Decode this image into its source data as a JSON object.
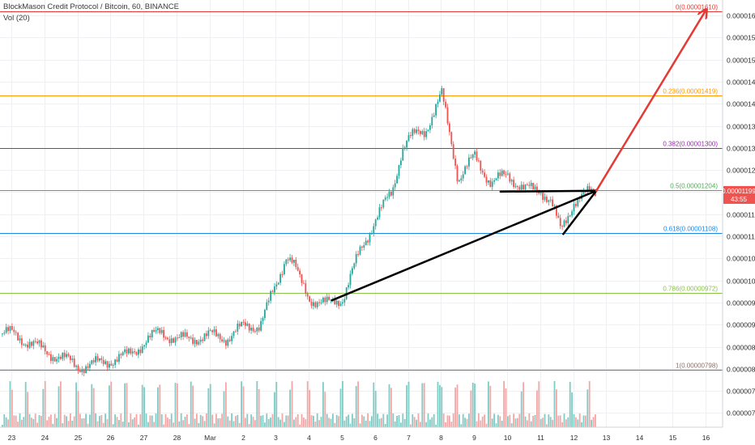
{
  "header": {
    "title": "BlockMason Credit Protocol / Bitcoin, 60, BINANCE",
    "volume_label": "Vol (20)"
  },
  "price_badge": {
    "price": "0.00001199",
    "countdown": "43:55",
    "color": "#ef5350"
  },
  "colors": {
    "up": "#26a69a",
    "down": "#ef5350",
    "vol_up": "#80cbc4",
    "vol_down": "#f3a6a6",
    "grid": "#eef0f3",
    "axis": "#555555"
  },
  "chart_data": {
    "type": "candlestick",
    "title": "BlockMason Credit Protocol / Bitcoin, 60, BINANCE",
    "x_ticks": [
      "23",
      "24",
      "25",
      "26",
      "27",
      "28",
      "Mar",
      "2",
      "3",
      "4",
      "5",
      "6",
      "7",
      "8",
      "9",
      "10",
      "11",
      "12",
      "13",
      "14",
      "15",
      "16"
    ],
    "y_ticks": [
      "0.00001600",
      "0.00001550",
      "0.00001500",
      "0.00001450",
      "0.00001400",
      "0.00001350",
      "0.00001300",
      "0.00001250",
      "0.00001200",
      "0.00001150",
      "0.00001100",
      "0.00001050",
      "0.00001000",
      "0.00000950",
      "0.00000900",
      "0.00000850",
      "0.00000800",
      "0.00000750",
      "0.00000700"
    ],
    "y_range": [
      6.8e-06,
      1.63e-05
    ],
    "price_path": [
      [
        "23",
        8.8e-06
      ],
      [
        "23.5",
        8.6e-06
      ],
      [
        "24",
        8.4e-06
      ],
      [
        "24.5",
        8.25e-06
      ],
      [
        "25",
        8.05e-06
      ],
      [
        "25.5",
        8.1e-06
      ],
      [
        "26",
        8.2e-06
      ],
      [
        "26.5",
        8.3e-06
      ],
      [
        "27",
        8.6e-06
      ],
      [
        "27.5",
        8.85e-06
      ],
      [
        "28",
        8.65e-06
      ],
      [
        "28.5",
        8.7e-06
      ],
      [
        "Mar",
        8.75e-06
      ],
      [
        "Mar.5",
        8.7e-06
      ],
      [
        "2",
        8.95e-06
      ],
      [
        "2.5",
        9e-06
      ],
      [
        "3",
        9.9e-06
      ],
      [
        "3.3",
        1.06e-05
      ],
      [
        "3.5",
        1.04e-05
      ],
      [
        "3.7",
        1e-05
      ],
      [
        "4",
        9.6e-06
      ],
      [
        "4.5",
        9.45e-06
      ],
      [
        "5",
        9.6e-06
      ],
      [
        "5.5",
        1.06e-05
      ],
      [
        "6",
        1.14e-05
      ],
      [
        "6.5",
        1.2e-05
      ],
      [
        "6.8",
        1.3e-05
      ],
      [
        "7",
        1.32e-05
      ],
      [
        "7.5",
        1.34e-05
      ],
      [
        "8",
        1.42e-05
      ],
      [
        "8.3",
        1.31e-05
      ],
      [
        "8.5",
        1.23e-05
      ],
      [
        "9",
        1.28e-05
      ],
      [
        "9.5",
        1.22e-05
      ],
      [
        "10",
        1.24e-05
      ],
      [
        "10.5",
        1.205e-05
      ],
      [
        "11",
        1.205e-05
      ],
      [
        "11.3",
        1.18e-05
      ],
      [
        "11.6",
        1.11e-05
      ],
      [
        "12",
        1.18e-05
      ],
      [
        "12.5",
        1.199e-05
      ]
    ],
    "fib_levels": [
      {
        "ratio": "0",
        "label": "0(0.00001610)",
        "value": 1.61e-05,
        "color": "#e53935"
      },
      {
        "ratio": "0.236",
        "label": "0.236(0.00001419)",
        "value": 1.419e-05,
        "color": "#ff9800"
      },
      {
        "ratio": "0.382",
        "label": "0.382(0.00001300)",
        "value": 1.3e-05,
        "color": "#9c27b0"
      },
      {
        "ratio": "0.5",
        "label": "0.5(0.00001204)",
        "value": 1.204e-05,
        "color": "#4caf50"
      },
      {
        "ratio": "0.618",
        "label": "0.618(0.00001108)",
        "value": 1.108e-05,
        "color": "#1e88e5"
      },
      {
        "ratio": "0.786",
        "label": "0.786(0.00000972)",
        "value": 9.72e-06,
        "color": "#8bc34a"
      },
      {
        "ratio": "1",
        "label": "1(0.00000798)",
        "value": 7.98e-06,
        "color": "#8d6e63"
      }
    ],
    "drawings": [
      {
        "name": "triangle-top",
        "color": "#000000",
        "from": [
          "9.8",
          1.201e-05
        ],
        "to": [
          "12.7",
          1.203e-05
        ]
      },
      {
        "name": "triangle-bottom",
        "color": "#000000",
        "from": [
          "11.7",
          1.105e-05
        ],
        "to": [
          "12.7",
          1.203e-05
        ]
      },
      {
        "name": "trend-line",
        "color": "#000000",
        "from": [
          "4.7",
          9.55e-06
        ],
        "to": [
          "12.7",
          1.203e-05
        ]
      },
      {
        "name": "arrow-target",
        "color": "#e53935",
        "from": [
          "12.7",
          1.203e-05
        ],
        "to": [
          "16",
          1.61e-05
        ]
      }
    ]
  }
}
